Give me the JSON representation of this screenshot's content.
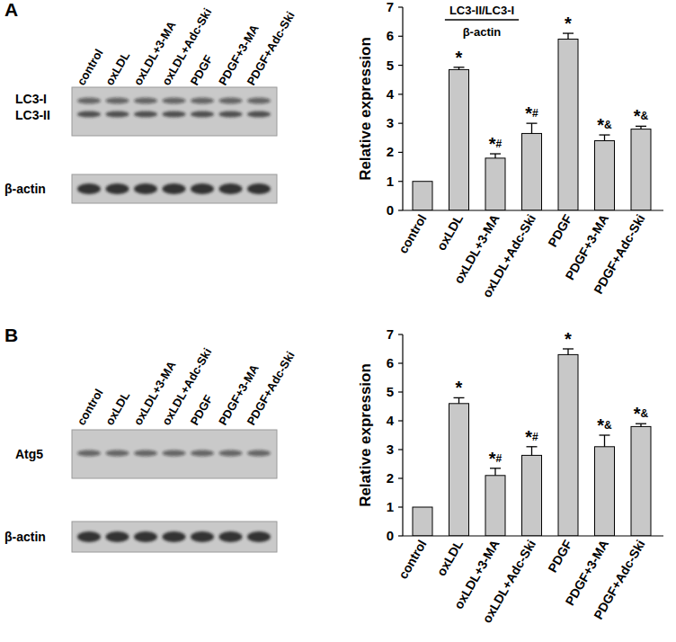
{
  "chart_data": [
    {
      "type": "bar",
      "panel": "A",
      "title": "LC3-II/LC3-I",
      "subtitle": "β-actin",
      "y_label": "Relative expression",
      "blot": {
        "bands": [
          "LC3-I",
          "LC3-II"
        ],
        "loading_control": "β-actin"
      },
      "categories": [
        "control",
        "oxLDL",
        "oxLDL+3-MA",
        "oxLDL+Adc-Ski",
        "PDGF",
        "PDGF+3-MA",
        "PDGF+Adc-Ski"
      ],
      "values": [
        1,
        4.85,
        1.8,
        2.65,
        5.9,
        2.4,
        2.8
      ],
      "errors": [
        0,
        0.08,
        0.15,
        0.35,
        0.2,
        0.2,
        0.1
      ],
      "annotations": [
        null,
        "*",
        "*#",
        "*#",
        "*",
        "*&",
        "*&"
      ],
      "color": "#c8c8c8",
      "ylim": [
        0,
        7
      ],
      "yticks": [
        0,
        1,
        2,
        3,
        4,
        5,
        6,
        7
      ]
    },
    {
      "type": "bar",
      "panel": "B",
      "y_label": "Relative expression",
      "blot": {
        "bands": [
          "Atg5"
        ],
        "loading_control": "β-actin"
      },
      "categories": [
        "control",
        "oxLDL",
        "oxLDL+3-MA",
        "oxLDL+Adc-Ski",
        "PDGF",
        "PDGF+3-MA",
        "PDGF+Adc-Ski"
      ],
      "values": [
        1,
        4.6,
        2.1,
        2.8,
        6.3,
        3.1,
        3.8
      ],
      "errors": [
        0,
        0.2,
        0.25,
        0.3,
        0.2,
        0.4,
        0.1
      ],
      "annotations": [
        null,
        "*",
        "*#",
        "*#",
        "*",
        "*&",
        "*&"
      ],
      "color": "#c8c8c8",
      "ylim": [
        0,
        7
      ],
      "yticks": [
        0,
        1,
        2,
        3,
        4,
        5,
        6,
        7
      ]
    }
  ]
}
